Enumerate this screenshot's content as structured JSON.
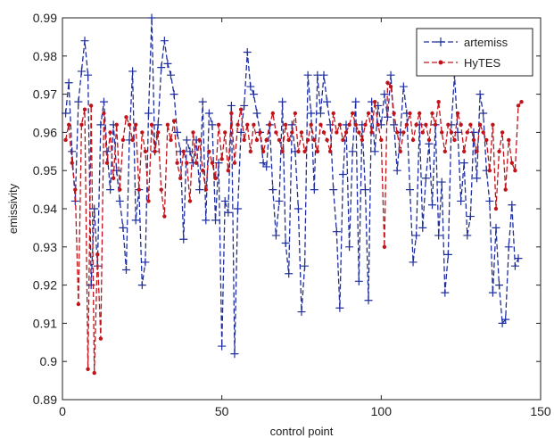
{
  "chart_data": {
    "type": "line",
    "title": "",
    "xlabel": "control point",
    "ylabel": "emissivity",
    "xlim": [
      0,
      150
    ],
    "ylim": [
      0.89,
      0.99
    ],
    "xticks": [
      "0",
      "50",
      "100",
      "150"
    ],
    "yticks": [
      "0.89",
      "0.9",
      "0.91",
      "0.92",
      "0.93",
      "0.94",
      "0.95",
      "0.96",
      "0.97",
      "0.98",
      "0.99"
    ],
    "grid": false,
    "legend_position": "top-right",
    "series": [
      {
        "name": "artemiss",
        "color": "#1f2f9f",
        "marker": "plus",
        "line_style": "dashed",
        "x": [
          1,
          2,
          3,
          4,
          5,
          6,
          7,
          8,
          9,
          10,
          11,
          12,
          13,
          14,
          15,
          16,
          17,
          18,
          19,
          20,
          21,
          22,
          23,
          24,
          25,
          26,
          27,
          28,
          29,
          30,
          31,
          32,
          33,
          34,
          35,
          36,
          37,
          38,
          39,
          40,
          41,
          42,
          43,
          44,
          45,
          46,
          47,
          48,
          49,
          50,
          51,
          52,
          53,
          54,
          55,
          56,
          57,
          58,
          59,
          60,
          61,
          62,
          63,
          64,
          65,
          66,
          67,
          68,
          69,
          70,
          71,
          72,
          73,
          74,
          75,
          76,
          77,
          78,
          79,
          80,
          81,
          82,
          83,
          84,
          85,
          86,
          87,
          88,
          89,
          90,
          91,
          92,
          93,
          94,
          95,
          96,
          97,
          98,
          99,
          100,
          101,
          102,
          103,
          104,
          105,
          106,
          107,
          108,
          109,
          110,
          111,
          112,
          113,
          114,
          115,
          116,
          117,
          118,
          119,
          120,
          121,
          122,
          123,
          124,
          125,
          126,
          127,
          128,
          129,
          130,
          131,
          132,
          133,
          134,
          135,
          136,
          137,
          138,
          139,
          140,
          141,
          142,
          143
        ],
        "y": [
          0.965,
          0.973,
          0.955,
          0.942,
          0.968,
          0.976,
          0.984,
          0.975,
          0.92,
          0.94,
          0.925,
          0.962,
          0.968,
          0.955,
          0.945,
          0.962,
          0.95,
          0.942,
          0.935,
          0.924,
          0.958,
          0.976,
          0.937,
          0.945,
          0.92,
          0.926,
          0.965,
          0.99,
          0.955,
          0.962,
          0.977,
          0.984,
          0.978,
          0.975,
          0.97,
          0.96,
          0.955,
          0.932,
          0.958,
          0.955,
          0.952,
          0.958,
          0.945,
          0.968,
          0.937,
          0.965,
          0.962,
          0.937,
          0.952,
          0.904,
          0.942,
          0.939,
          0.967,
          0.902,
          0.94,
          0.96,
          0.967,
          0.981,
          0.972,
          0.97,
          0.965,
          0.96,
          0.952,
          0.951,
          0.962,
          0.945,
          0.933,
          0.942,
          0.968,
          0.931,
          0.923,
          0.962,
          0.955,
          0.94,
          0.913,
          0.925,
          0.975,
          0.965,
          0.945,
          0.975,
          0.965,
          0.975,
          0.968,
          0.962,
          0.945,
          0.934,
          0.914,
          0.949,
          0.962,
          0.93,
          0.955,
          0.968,
          0.921,
          0.962,
          0.945,
          0.916,
          0.968,
          0.955,
          0.967,
          0.962,
          0.97,
          0.964,
          0.975,
          0.962,
          0.95,
          0.96,
          0.972,
          0.965,
          0.945,
          0.926,
          0.933,
          0.962,
          0.935,
          0.948,
          0.957,
          0.941,
          0.962,
          0.933,
          0.947,
          0.918,
          0.928,
          0.962,
          0.975,
          0.96,
          0.942,
          0.952,
          0.933,
          0.938,
          0.96,
          0.948,
          0.97,
          0.965,
          0.95,
          0.942,
          0.918,
          0.935,
          0.92,
          0.91,
          0.911,
          0.93,
          0.941,
          0.925,
          0.927
        ]
      },
      {
        "name": "HyTES",
        "color": "#c0141a",
        "marker": "dot",
        "line_style": "dashed",
        "x": [
          1,
          2,
          3,
          4,
          5,
          6,
          7,
          8,
          9,
          10,
          11,
          12,
          13,
          14,
          15,
          16,
          17,
          18,
          19,
          20,
          21,
          22,
          23,
          24,
          25,
          26,
          27,
          28,
          29,
          30,
          31,
          32,
          33,
          34,
          35,
          36,
          37,
          38,
          39,
          40,
          41,
          42,
          43,
          44,
          45,
          46,
          47,
          48,
          49,
          50,
          51,
          52,
          53,
          54,
          55,
          56,
          57,
          58,
          59,
          60,
          61,
          62,
          63,
          64,
          65,
          66,
          67,
          68,
          69,
          70,
          71,
          72,
          73,
          74,
          75,
          76,
          77,
          78,
          79,
          80,
          81,
          82,
          83,
          84,
          85,
          86,
          87,
          88,
          89,
          90,
          91,
          92,
          93,
          94,
          95,
          96,
          97,
          98,
          99,
          100,
          101,
          102,
          103,
          104,
          105,
          106,
          107,
          108,
          109,
          110,
          111,
          112,
          113,
          114,
          115,
          116,
          117,
          118,
          119,
          120,
          121,
          122,
          123,
          124,
          125,
          126,
          127,
          128,
          129,
          130,
          131,
          132,
          133,
          134,
          135,
          136,
          137,
          138,
          139,
          140,
          141,
          142,
          143,
          144
        ],
        "y": [
          0.958,
          0.962,
          0.952,
          0.945,
          0.915,
          0.962,
          0.966,
          0.898,
          0.967,
          0.897,
          0.928,
          0.906,
          0.965,
          0.952,
          0.96,
          0.948,
          0.962,
          0.945,
          0.958,
          0.964,
          0.962,
          0.958,
          0.962,
          0.945,
          0.96,
          0.955,
          0.942,
          0.962,
          0.955,
          0.96,
          0.945,
          0.938,
          0.962,
          0.958,
          0.963,
          0.952,
          0.948,
          0.955,
          0.952,
          0.942,
          0.96,
          0.952,
          0.958,
          0.95,
          0.945,
          0.955,
          0.952,
          0.948,
          0.962,
          0.953,
          0.96,
          0.95,
          0.965,
          0.952,
          0.962,
          0.966,
          0.958,
          0.962,
          0.955,
          0.962,
          0.958,
          0.96,
          0.955,
          0.958,
          0.962,
          0.965,
          0.96,
          0.958,
          0.955,
          0.962,
          0.958,
          0.96,
          0.965,
          0.955,
          0.96,
          0.955,
          0.958,
          0.962,
          0.958,
          0.955,
          0.962,
          0.96,
          0.958,
          0.955,
          0.965,
          0.96,
          0.962,
          0.958,
          0.96,
          0.962,
          0.965,
          0.962,
          0.96,
          0.958,
          0.962,
          0.965,
          0.96,
          0.968,
          0.962,
          0.958,
          0.93,
          0.973,
          0.972,
          0.965,
          0.96,
          0.955,
          0.96,
          0.962,
          0.965,
          0.958,
          0.962,
          0.965,
          0.96,
          0.962,
          0.958,
          0.965,
          0.962,
          0.968,
          0.96,
          0.955,
          0.962,
          0.96,
          0.958,
          0.965,
          0.962,
          0.955,
          0.96,
          0.962,
          0.958,
          0.955,
          0.962,
          0.96,
          0.958,
          0.95,
          0.962,
          0.94,
          0.955,
          0.96,
          0.945,
          0.958,
          0.952,
          0.95,
          0.967,
          0.968
        ]
      }
    ]
  }
}
